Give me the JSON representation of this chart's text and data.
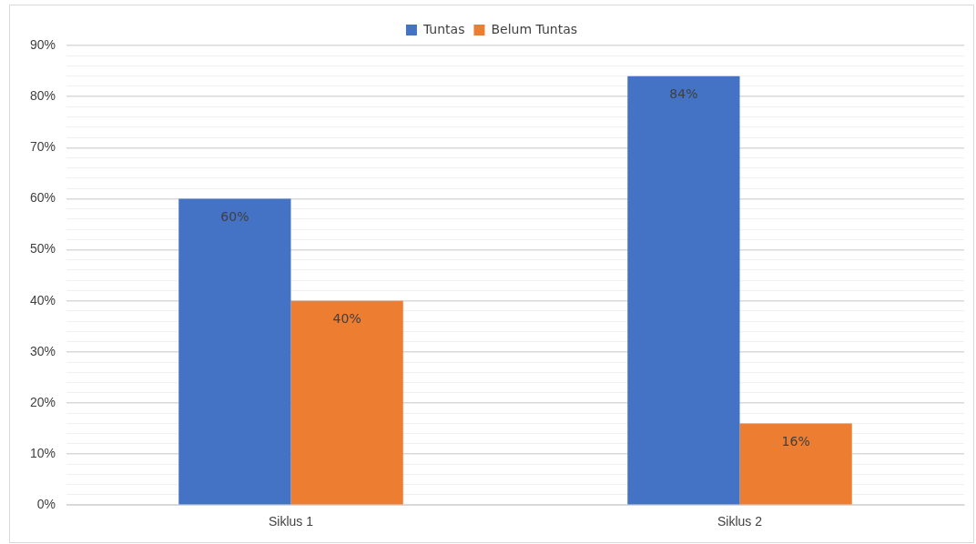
{
  "chart_data": {
    "type": "bar",
    "categories": [
      "Siklus 1",
      "Siklus 2"
    ],
    "series": [
      {
        "name": "Tuntas",
        "color": "#4472c4",
        "values": [
          60,
          84
        ],
        "value_labels": [
          "60%",
          "84%"
        ]
      },
      {
        "name": "Belum Tuntas",
        "color": "#ed7d31",
        "values": [
          40,
          16
        ],
        "value_labels": [
          "40%",
          "16%"
        ]
      }
    ],
    "ylim": [
      0,
      90
    ],
    "yticks": [
      {
        "value": 0,
        "label": "0%"
      },
      {
        "value": 2,
        "label": null
      },
      {
        "value": 4,
        "label": null
      },
      {
        "value": 6,
        "label": null
      },
      {
        "value": 8,
        "label": null
      },
      {
        "value": 10,
        "label": "10%"
      },
      {
        "value": 12,
        "label": null
      },
      {
        "value": 14,
        "label": null
      },
      {
        "value": 16,
        "label": null
      },
      {
        "value": 18,
        "label": null
      },
      {
        "value": 20,
        "label": "20%"
      },
      {
        "value": 22,
        "label": null
      },
      {
        "value": 24,
        "label": null
      },
      {
        "value": 26,
        "label": null
      },
      {
        "value": 28,
        "label": null
      },
      {
        "value": 30,
        "label": "30%"
      },
      {
        "value": 32,
        "label": null
      },
      {
        "value": 34,
        "label": null
      },
      {
        "value": 36,
        "label": null
      },
      {
        "value": 38,
        "label": null
      },
      {
        "value": 40,
        "label": "40%"
      },
      {
        "value": 42,
        "label": null
      },
      {
        "value": 44,
        "label": null
      },
      {
        "value": 46,
        "label": null
      },
      {
        "value": 48,
        "label": null
      },
      {
        "value": 50,
        "label": "50%"
      },
      {
        "value": 52,
        "label": null
      },
      {
        "value": 54,
        "label": null
      },
      {
        "value": 56,
        "label": null
      },
      {
        "value": 58,
        "label": null
      },
      {
        "value": 60,
        "label": "60%"
      },
      {
        "value": 62,
        "label": null
      },
      {
        "value": 64,
        "label": null
      },
      {
        "value": 66,
        "label": null
      },
      {
        "value": 68,
        "label": null
      },
      {
        "value": 70,
        "label": "70%"
      },
      {
        "value": 72,
        "label": null
      },
      {
        "value": 74,
        "label": null
      },
      {
        "value": 76,
        "label": null
      },
      {
        "value": 78,
        "label": null
      },
      {
        "value": 80,
        "label": "80%"
      },
      {
        "value": 82,
        "label": null
      },
      {
        "value": 84,
        "label": null
      },
      {
        "value": 86,
        "label": null
      },
      {
        "value": 88,
        "label": null
      },
      {
        "value": 90,
        "label": "90%"
      }
    ],
    "grid": true,
    "legend": "top"
  }
}
